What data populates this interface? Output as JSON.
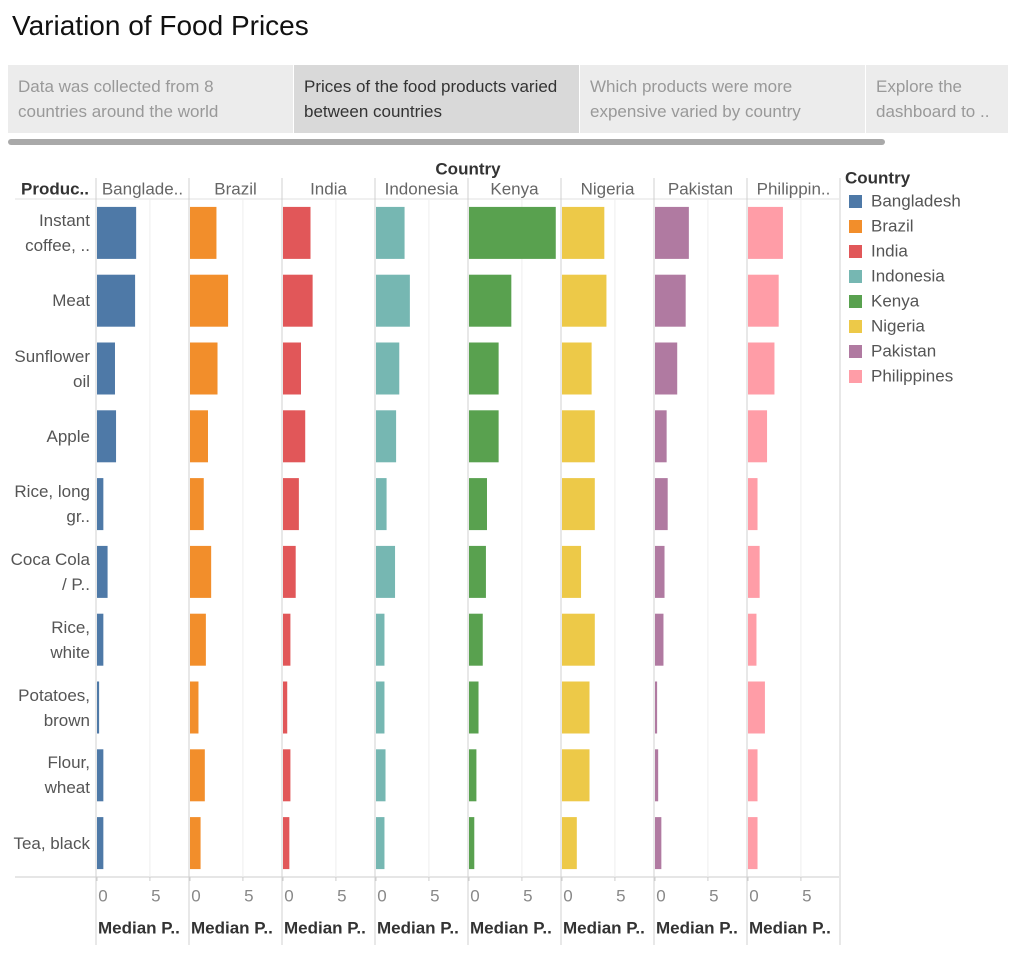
{
  "title": "Variation of Food Prices",
  "story_points": [
    "Data was collected from 8 countries around the world",
    "Prices of the food products varied between countries",
    "Which products were more expensive varied by country",
    "Explore the dashboard to .."
  ],
  "selected_story_point": 1,
  "chart_data": {
    "type": "bar",
    "orientation": "horizontal",
    "column_title": "Country",
    "row_header": "Produc..",
    "x_label": "Median P..",
    "legend_title": "Country",
    "panel_labels": [
      "Banglade..",
      "Brazil",
      "India",
      "Indonesia",
      "Kenya",
      "Nigeria",
      "Pakistan",
      "Philippin.."
    ],
    "categories": [
      "Instant coffee, ..",
      "Meat",
      "Sunflower oil",
      "Apple",
      "Rice, long gr..",
      "Coca Cola / P..",
      "Rice, white",
      "Potatoes, brown",
      "Flour, wheat",
      "Tea, black"
    ],
    "xlim": [
      0,
      8.6
    ],
    "xticks": [
      0,
      5
    ],
    "grid": true,
    "series": [
      {
        "name": "Bangladesh",
        "color": "#4e79a7",
        "values": [
          3.7,
          3.6,
          1.7,
          1.8,
          0.6,
          1.0,
          0.6,
          0.2,
          0.6,
          0.6
        ]
      },
      {
        "name": "Brazil",
        "color": "#f28e2b",
        "values": [
          2.5,
          3.6,
          2.6,
          1.7,
          1.3,
          2.0,
          1.5,
          0.8,
          1.4,
          1.0
        ]
      },
      {
        "name": "India",
        "color": "#e15759",
        "values": [
          2.6,
          2.8,
          1.7,
          2.1,
          1.5,
          1.2,
          0.7,
          0.4,
          0.7,
          0.6
        ]
      },
      {
        "name": "Indonesia",
        "color": "#76b7b2",
        "values": [
          2.7,
          3.2,
          2.2,
          1.9,
          1.0,
          1.8,
          0.8,
          0.8,
          0.9,
          0.8
        ]
      },
      {
        "name": "Kenya",
        "color": "#59a14f",
        "values": [
          8.2,
          4.0,
          2.8,
          2.8,
          1.7,
          1.6,
          1.3,
          0.9,
          0.7,
          0.5
        ]
      },
      {
        "name": "Nigeria",
        "color": "#edc948",
        "values": [
          4.0,
          4.2,
          2.8,
          3.1,
          3.1,
          1.8,
          3.1,
          2.6,
          2.6,
          1.4
        ]
      },
      {
        "name": "Pakistan",
        "color": "#b07aa1",
        "values": [
          3.2,
          2.9,
          2.1,
          1.1,
          1.2,
          0.9,
          0.8,
          0.2,
          0.3,
          0.6
        ]
      },
      {
        "name": "Philippines",
        "color": "#ff9da7",
        "values": [
          3.3,
          2.9,
          2.5,
          1.8,
          0.9,
          1.1,
          0.8,
          1.6,
          0.9,
          0.9
        ]
      }
    ]
  }
}
